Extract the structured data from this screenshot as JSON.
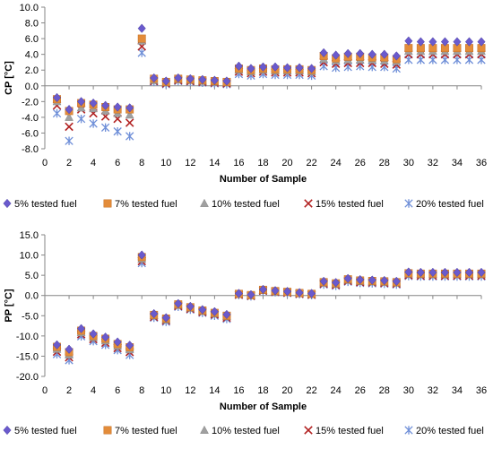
{
  "chart_data": [
    {
      "type": "scatter",
      "xlabel": "Number of Sample",
      "ylabel": "CP [°C]",
      "xlim": [
        0,
        36
      ],
      "ylim": [
        -8,
        10
      ],
      "x_ticks": [
        "0",
        "2",
        "4",
        "6",
        "8",
        "10",
        "12",
        "14",
        "16",
        "18",
        "20",
        "22",
        "24",
        "26",
        "28",
        "30",
        "32",
        "34",
        "36"
      ],
      "y_ticks": [
        "-8.0",
        "-6.0",
        "-4.0",
        "-2.0",
        "0.0",
        "2.0",
        "4.0",
        "6.0",
        "8.0",
        "10.0"
      ],
      "x": [
        1,
        2,
        3,
        4,
        5,
        6,
        7,
        8,
        9,
        10,
        11,
        12,
        13,
        14,
        15,
        16,
        17,
        18,
        19,
        20,
        21,
        22,
        23,
        24,
        25,
        26,
        27,
        28,
        29,
        30,
        31,
        32,
        33,
        34,
        35,
        36
      ],
      "series": [
        {
          "name": "5% tested fuel",
          "values": [
            -1.5,
            -3.0,
            -2.0,
            -2.2,
            -2.5,
            -2.7,
            -2.8,
            7.3,
            1.0,
            0.6,
            1.0,
            0.9,
            0.8,
            0.7,
            0.6,
            2.5,
            2.2,
            2.4,
            2.4,
            2.3,
            2.3,
            2.2,
            4.2,
            3.9,
            4.1,
            4.1,
            4.0,
            4.0,
            3.8,
            5.7,
            5.6,
            5.6,
            5.6,
            5.6,
            5.6,
            5.6
          ]
        },
        {
          "name": "7% tested fuel",
          "values": [
            -1.7,
            -3.2,
            -2.2,
            -2.4,
            -2.7,
            -3.0,
            -3.0,
            6.0,
            0.9,
            0.5,
            0.9,
            0.8,
            0.7,
            0.6,
            0.5,
            2.2,
            2.0,
            2.2,
            2.1,
            2.1,
            2.1,
            2.0,
            3.8,
            3.5,
            3.7,
            3.7,
            3.6,
            3.6,
            3.4,
            4.8,
            4.8,
            4.8,
            4.8,
            4.8,
            4.8,
            4.8
          ]
        },
        {
          "name": "10% tested fuel",
          "values": [
            -2.0,
            -4.0,
            -2.8,
            -2.9,
            -3.2,
            -3.5,
            -3.7,
            5.7,
            0.7,
            0.4,
            0.8,
            0.7,
            0.6,
            0.5,
            0.4,
            2.0,
            1.8,
            2.0,
            1.9,
            1.9,
            1.9,
            1.8,
            3.4,
            3.2,
            3.3,
            3.3,
            3.3,
            3.2,
            3.1,
            4.4,
            4.4,
            4.4,
            4.4,
            4.4,
            4.4,
            4.4
          ]
        },
        {
          "name": "15% tested fuel",
          "values": [
            -2.5,
            -5.2,
            -3.0,
            -3.5,
            -3.9,
            -4.2,
            -4.7,
            5.0,
            0.6,
            0.3,
            0.7,
            0.6,
            0.5,
            0.4,
            0.3,
            1.8,
            1.6,
            1.8,
            1.7,
            1.7,
            1.7,
            1.6,
            3.0,
            2.8,
            2.9,
            2.9,
            2.9,
            2.8,
            2.7,
            4.0,
            4.0,
            4.0,
            4.0,
            4.0,
            4.0,
            4.0
          ]
        },
        {
          "name": "20% tested fuel",
          "values": [
            -3.5,
            -7.0,
            -4.2,
            -4.8,
            -5.3,
            -5.8,
            -6.4,
            4.2,
            0.5,
            0.2,
            0.6,
            0.5,
            0.4,
            0.3,
            0.2,
            1.5,
            1.3,
            1.5,
            1.4,
            1.4,
            1.4,
            1.3,
            2.5,
            2.3,
            2.4,
            2.5,
            2.4,
            2.4,
            2.2,
            3.3,
            3.3,
            3.3,
            3.3,
            3.3,
            3.3,
            3.3
          ]
        }
      ],
      "legend_placement": "bottom",
      "grid": false
    },
    {
      "type": "scatter",
      "xlabel": "Number of Sample",
      "ylabel": "PP [°C]",
      "xlim": [
        0,
        36
      ],
      "ylim": [
        -20,
        15
      ],
      "x_ticks": [
        "0",
        "2",
        "4",
        "6",
        "8",
        "10",
        "12",
        "14",
        "16",
        "18",
        "20",
        "22",
        "24",
        "26",
        "28",
        "30",
        "32",
        "34",
        "36"
      ],
      "y_ticks": [
        "-20.0",
        "-15.0",
        "-10.0",
        "-5.0",
        "0.0",
        "5.0",
        "10.0",
        "15.0"
      ],
      "x": [
        1,
        2,
        3,
        4,
        5,
        6,
        7,
        8,
        9,
        10,
        11,
        12,
        13,
        14,
        15,
        16,
        17,
        18,
        19,
        20,
        21,
        22,
        23,
        24,
        25,
        26,
        27,
        28,
        29,
        30,
        31,
        32,
        33,
        34,
        35,
        36
      ],
      "series": [
        {
          "name": "5% tested fuel",
          "values": [
            -12.2,
            -13.3,
            -8.2,
            -9.5,
            -10.3,
            -11.5,
            -12.3,
            10.0,
            -4.5,
            -5.5,
            -2.0,
            -2.7,
            -3.5,
            -4.0,
            -4.7,
            0.5,
            0.2,
            1.5,
            1.2,
            1.0,
            0.7,
            0.5,
            3.5,
            3.2,
            4.2,
            3.9,
            3.8,
            3.7,
            3.5,
            5.8,
            5.7,
            5.7,
            5.7,
            5.7,
            5.7,
            5.7
          ]
        },
        {
          "name": "7% tested fuel",
          "values": [
            -12.7,
            -14.0,
            -8.7,
            -10.0,
            -10.7,
            -12.0,
            -12.8,
            9.5,
            -4.8,
            -5.7,
            -2.2,
            -2.9,
            -3.7,
            -4.3,
            -5.0,
            0.4,
            0.1,
            1.4,
            1.1,
            0.9,
            0.6,
            0.4,
            3.3,
            3.0,
            4.0,
            3.7,
            3.6,
            3.5,
            3.3,
            5.5,
            5.4,
            5.4,
            5.4,
            5.4,
            5.4,
            5.4
          ]
        },
        {
          "name": "10% tested fuel",
          "values": [
            -13.3,
            -14.7,
            -9.2,
            -10.4,
            -11.2,
            -12.5,
            -13.4,
            9.0,
            -5.0,
            -6.0,
            -2.4,
            -3.1,
            -3.9,
            -4.5,
            -5.2,
            0.3,
            0.0,
            1.3,
            1.0,
            0.8,
            0.5,
            0.3,
            3.1,
            2.8,
            3.8,
            3.5,
            3.4,
            3.3,
            3.1,
            5.3,
            5.2,
            5.2,
            5.2,
            5.2,
            5.2,
            5.2
          ]
        },
        {
          "name": "15% tested fuel",
          "values": [
            -13.9,
            -15.3,
            -9.6,
            -10.8,
            -11.7,
            -13.0,
            -14.0,
            8.5,
            -5.3,
            -6.2,
            -2.6,
            -3.3,
            -4.1,
            -4.7,
            -5.5,
            0.2,
            -0.1,
            1.2,
            0.9,
            0.7,
            0.4,
            0.2,
            2.9,
            2.6,
            3.6,
            3.3,
            3.2,
            3.1,
            2.9,
            5.0,
            4.9,
            4.9,
            4.9,
            4.9,
            4.9,
            4.9
          ]
        },
        {
          "name": "20% tested fuel",
          "values": [
            -14.5,
            -16.0,
            -10.1,
            -11.3,
            -12.2,
            -13.5,
            -14.7,
            8.0,
            -5.5,
            -6.5,
            -2.8,
            -3.5,
            -4.3,
            -5.0,
            -5.8,
            0.1,
            -0.2,
            1.1,
            0.8,
            0.6,
            0.3,
            0.1,
            2.7,
            2.4,
            3.4,
            3.1,
            3.0,
            2.9,
            2.7,
            4.8,
            4.7,
            4.7,
            4.7,
            4.7,
            4.7,
            4.7
          ]
        }
      ],
      "legend_placement": "bottom",
      "grid": false
    }
  ],
  "legend": {
    "labels": [
      "5% tested fuel",
      "7% tested fuel",
      "10% tested fuel",
      "15% tested fuel",
      "20% tested fuel"
    ],
    "colors": [
      "#6a5acd",
      "#e38c3a",
      "#a0a0a0",
      "#b22222",
      "#6f8fd8"
    ],
    "markers": [
      "diamond",
      "square",
      "triangle",
      "x",
      "star"
    ]
  }
}
